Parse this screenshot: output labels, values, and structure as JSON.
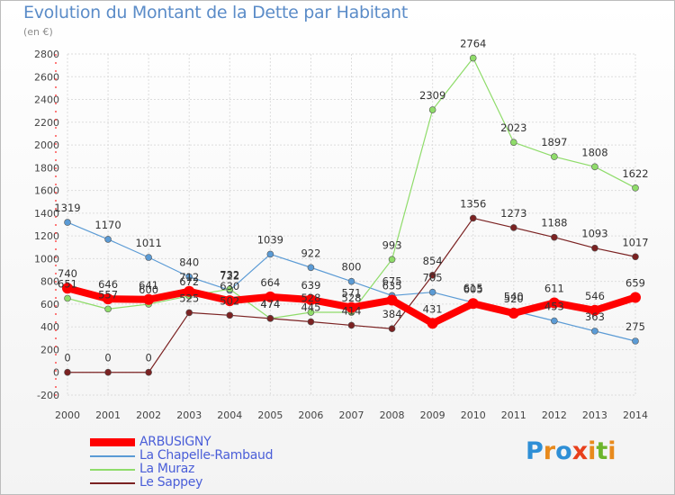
{
  "title": "Evolution du Montant de la Dette par Habitant",
  "subtitle": "(en €)",
  "logo": {
    "text": "Proxiti",
    "letters": [
      "P",
      "r",
      "o",
      "x",
      "i",
      "t",
      "i"
    ],
    "colors": [
      "#2e8fd6",
      "#e88a1c",
      "#2e8fd6",
      "#e8401c",
      "#e88a1c",
      "#6cb52c",
      "#e88a1c"
    ]
  },
  "chart_data": {
    "type": "line",
    "x": [
      "2000",
      "2001",
      "2002",
      "2003",
      "2004",
      "2005",
      "2006",
      "2007",
      "2008",
      "2009",
      "2010",
      "2011",
      "2012",
      "2013",
      "2014"
    ],
    "ylim": [
      -200,
      2800
    ],
    "yticks": [
      "-200",
      "0",
      "200",
      "400",
      "600",
      "800",
      "1000",
      "1200",
      "1400",
      "1600",
      "1800",
      "2000",
      "2200",
      "2400",
      "2600",
      "2800"
    ],
    "grid": true,
    "legend_position": "bottom-left",
    "series": [
      {
        "name": "ARBUSIGNY",
        "color": "#ff0000",
        "width": 8,
        "values": [
          740,
          646,
          641,
          712,
          630,
          664,
          639,
          571,
          635,
          431,
          605,
          520,
          611,
          546,
          659
        ],
        "labels": [
          "740",
          "646",
          "641",
          "712",
          "630",
          "664",
          "639",
          "571",
          "635",
          "431",
          "605",
          "520",
          "611",
          "546",
          "659"
        ]
      },
      {
        "name": "La Chapelle-Rambaud",
        "color": "#5b9bd5",
        "width": 1.2,
        "values": [
          1319,
          1170,
          1011,
          840,
          722,
          1039,
          922,
          800,
          675,
          705,
          615,
          540,
          453,
          363,
          275
        ],
        "labels": [
          "1319",
          "1170",
          "1011",
          "840",
          "722",
          "1039",
          "922",
          "800",
          "675",
          "705",
          "615",
          "540",
          "453",
          "363",
          "275"
        ]
      },
      {
        "name": "La Muraz",
        "color": "#8fdc6a",
        "width": 1.2,
        "values": [
          651,
          557,
          600,
          672,
          732,
          474,
          528,
          528,
          993,
          2309,
          2764,
          2023,
          1897,
          1808,
          1622
        ],
        "labels": [
          "651",
          "557",
          "600",
          "672",
          "732",
          "474",
          "528",
          "528",
          "993",
          "2309",
          "2764",
          "2023",
          "1897",
          "1808",
          "1622"
        ]
      },
      {
        "name": "Le Sappey",
        "color": "#7b2222",
        "width": 1.2,
        "values": [
          0,
          0,
          0,
          525,
          502,
          474,
          445,
          414,
          384,
          854,
          1356,
          1273,
          1188,
          1093,
          1017
        ],
        "labels": [
          "0",
          "0",
          "0",
          "525",
          "502",
          "474",
          "445",
          "414",
          "384",
          "854",
          "1356",
          "1273",
          "1188",
          "1093",
          "1017"
        ]
      }
    ]
  }
}
